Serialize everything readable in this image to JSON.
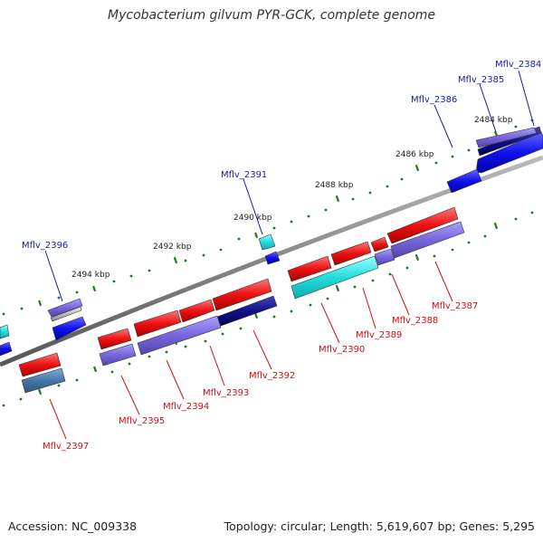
{
  "title": "Mycobacterium gilvum PYR-GCK, complete genome",
  "footer": {
    "accession": "Accession: NC_009338",
    "summary": "Topology: circular; Length: 5,619,607 bp; Genes: 5,295"
  },
  "colors": {
    "backbone": "#888888",
    "tick": "#1a7a1a",
    "cds_red": "#ee1111",
    "cds_blue": "#1111ee",
    "cds_cyan": "#22dddd",
    "cds_purple": "#7766dd",
    "cds_navy": "#111188",
    "cds_steel": "#4477aa",
    "cds_silver": "#bbbbbb",
    "label_blue": "#1a1aaa",
    "label_red": "#cc1111"
  },
  "kbp_labels": [
    "2484 kbp",
    "2486 kbp",
    "2488 kbp",
    "2490 kbp",
    "2492 kbp",
    "2494 kbp"
  ],
  "top_gene_labels": [
    "Mflv_2384",
    "Mflv_2385",
    "Mflv_2386",
    "Mflv_2391",
    "Mflv_2396"
  ],
  "bottom_gene_labels": [
    "Mflv_2387",
    "Mflv_2388",
    "Mflv_2389",
    "Mflv_2390",
    "Mflv_2392",
    "Mflv_2393",
    "Mflv_2394",
    "Mflv_2395",
    "Mflv_2397"
  ]
}
